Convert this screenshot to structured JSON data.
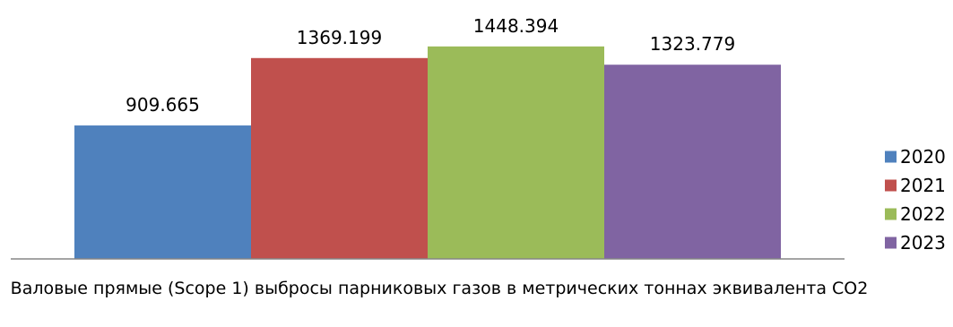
{
  "chart_data": {
    "type": "bar",
    "categories": [
      "2020",
      "2021",
      "2022",
      "2023"
    ],
    "values": [
      909.665,
      1369.199,
      1448.394,
      1323.779
    ],
    "value_labels": [
      "909.665",
      "1369.199",
      "1448.394",
      "1323.779"
    ],
    "colors": [
      "#4F81BD",
      "#C0504D",
      "#9BBB59",
      "#8064A2"
    ],
    "xlabel": "Валовые прямые (Scope 1) выбросы парниковых газов в метрических тоннах эквивалента CO2",
    "ylim": [
      0,
      1600
    ],
    "grid": false,
    "legend": {
      "position": "right",
      "entries": [
        "2020",
        "2021",
        "2022",
        "2023"
      ]
    }
  }
}
